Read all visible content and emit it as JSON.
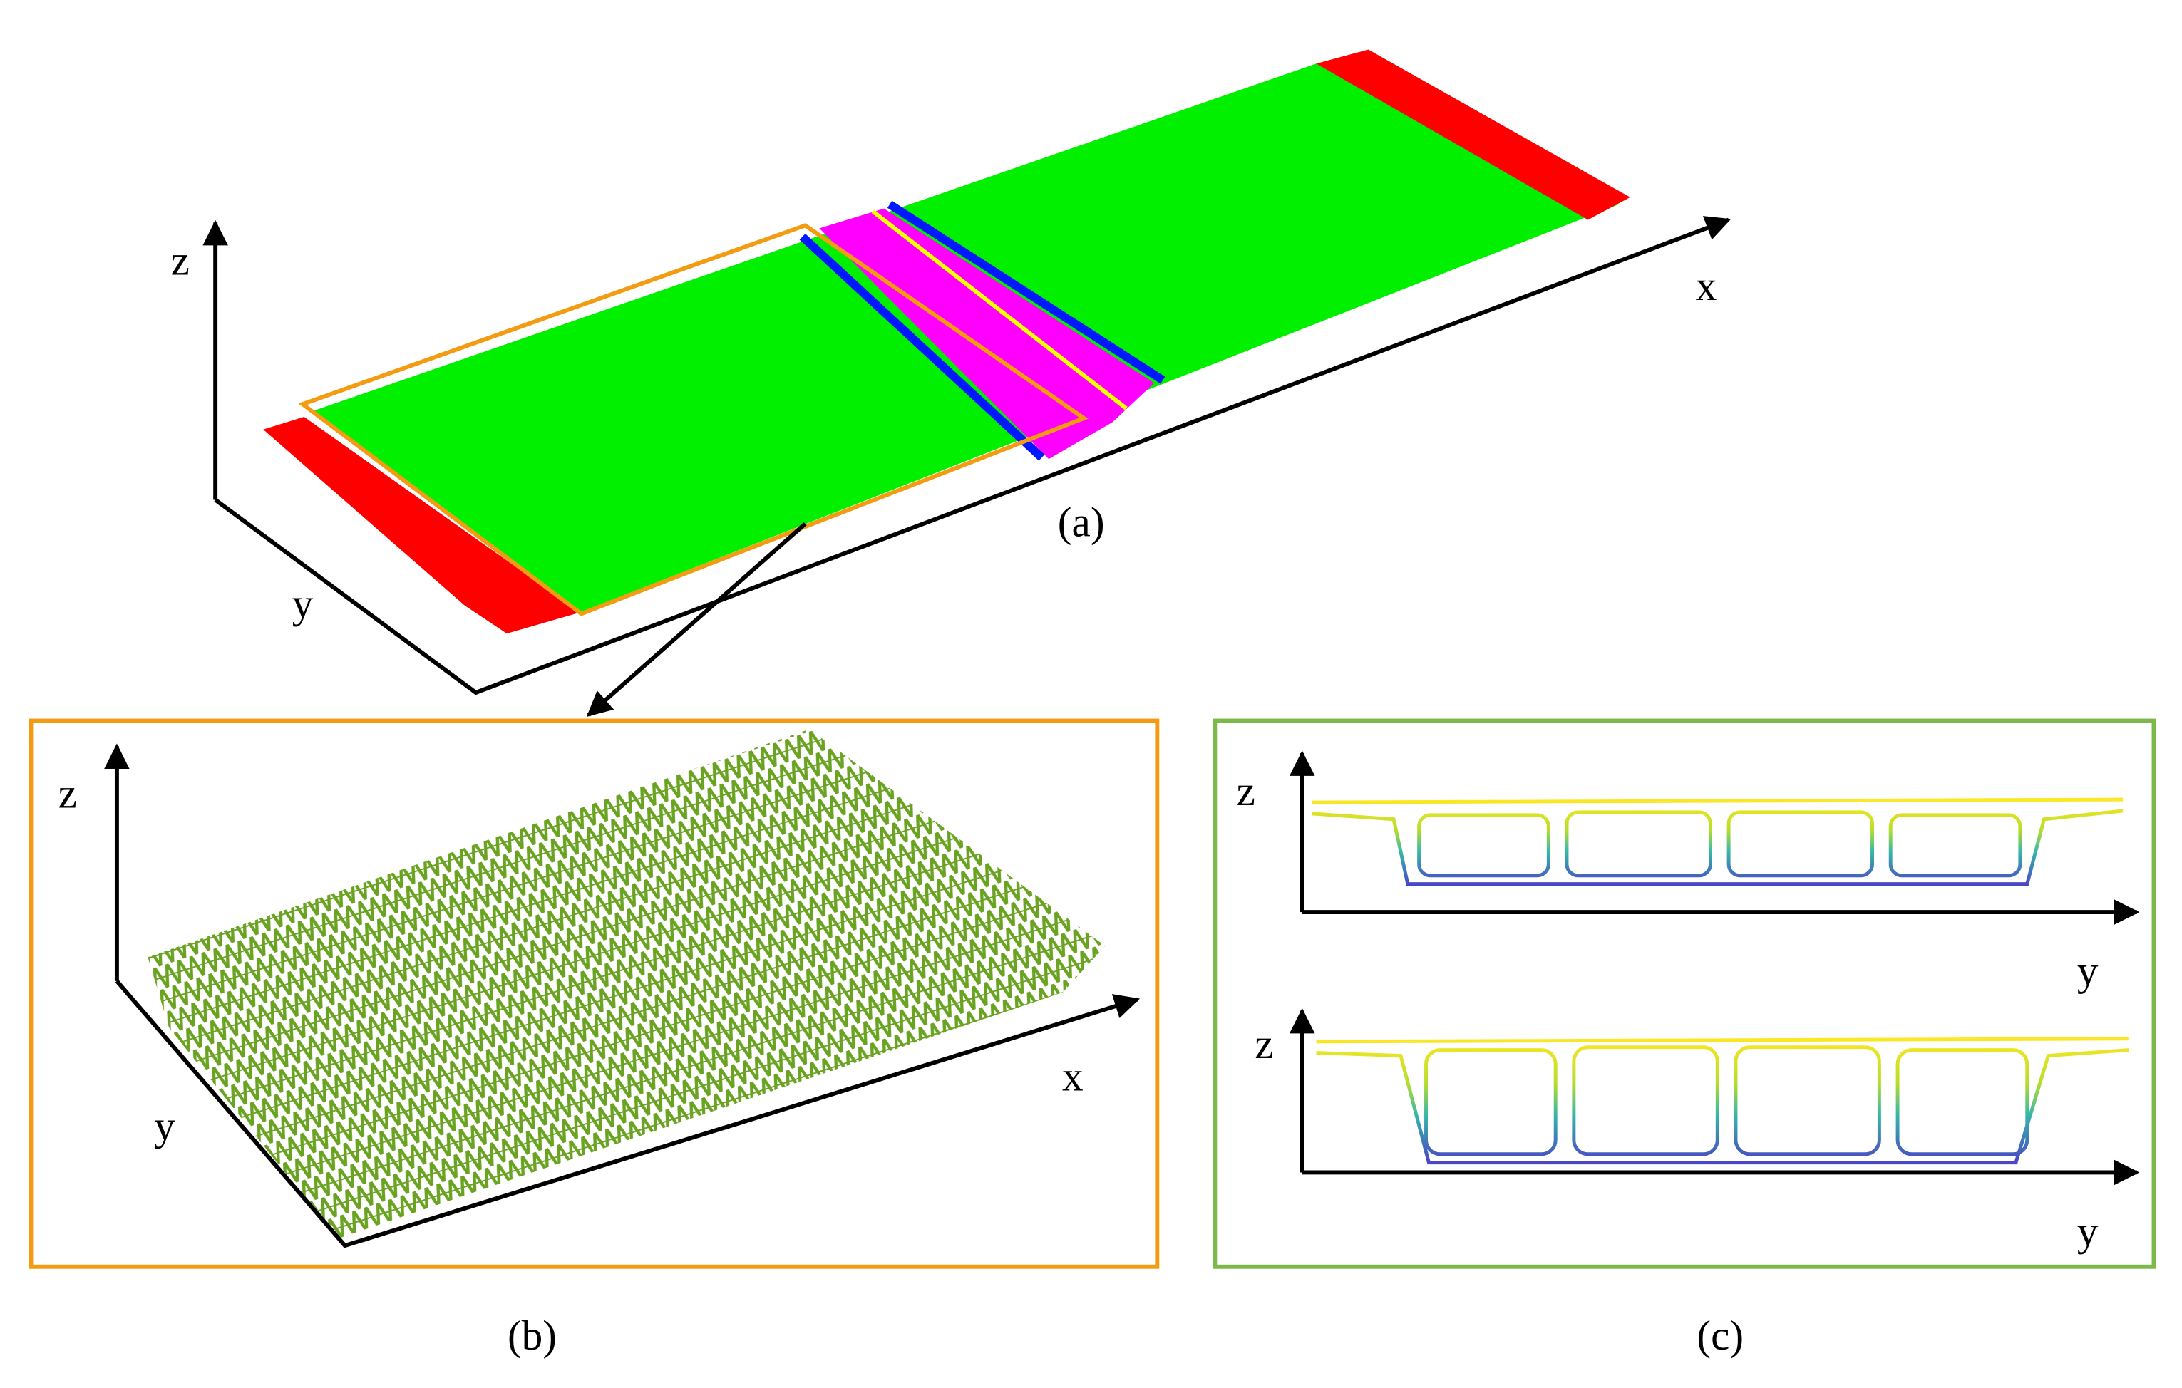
{
  "panels": [
    {
      "caption": "(a)",
      "axes": {
        "x": "x",
        "y": "y",
        "z": "z"
      }
    },
    {
      "caption": "(b)",
      "axes": {
        "x": "x",
        "y": "y",
        "z": "z"
      }
    },
    {
      "caption": "(c)",
      "sections": [
        {
          "z": "z",
          "y": "y"
        },
        {
          "z": "z",
          "y": "y"
        }
      ]
    }
  ]
}
